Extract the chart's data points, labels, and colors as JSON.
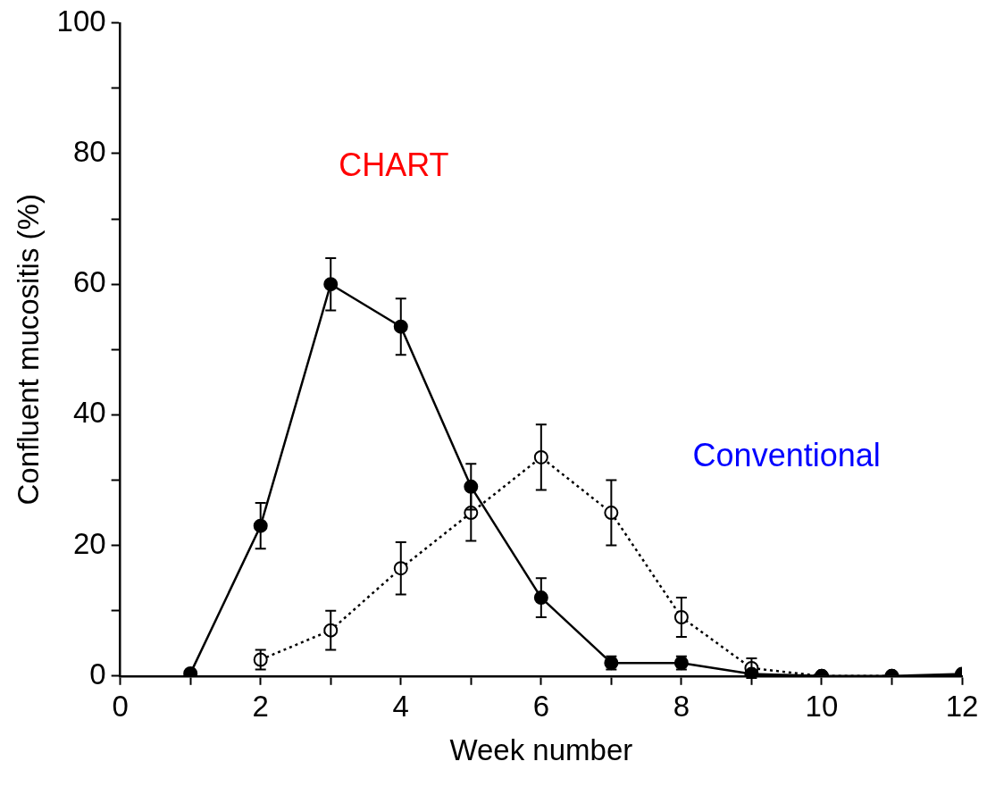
{
  "chart_data": {
    "type": "line",
    "xlabel": "Week number",
    "ylabel": "Confluent mucositis (%)",
    "xlim": [
      0,
      12
    ],
    "xticks": [
      0,
      {
        "value": 1,
        "label": null
      },
      2,
      {
        "value": 3,
        "label": null
      },
      4,
      {
        "value": 5,
        "label": null
      },
      6,
      {
        "value": 7,
        "label": null
      },
      8,
      {
        "value": 9,
        "label": null
      },
      10,
      {
        "value": 11,
        "label": null
      },
      12
    ],
    "ylim": [
      0,
      100
    ],
    "yticks": [
      0,
      {
        "value": 10,
        "label": null
      },
      20,
      {
        "value": 30,
        "label": null
      },
      40,
      {
        "value": 50,
        "label": null
      },
      60,
      {
        "value": 70,
        "label": null
      },
      80,
      {
        "value": 90,
        "label": null
      },
      100
    ],
    "grid": false,
    "legend": false,
    "marker": "circle",
    "x": [
      1,
      2,
      3,
      4,
      5,
      6,
      7,
      8,
      9,
      10,
      11,
      12
    ],
    "series": [
      {
        "name": "CHART",
        "color": "#000000",
        "line_style": "solid",
        "values": [
          0.4,
          23,
          60,
          53.5,
          29,
          12,
          2,
          2,
          0.3,
          0,
          0,
          0.3
        ],
        "errors": [
          null,
          3.5,
          4,
          4.3,
          3.5,
          3,
          1,
          1,
          null,
          null,
          null,
          null
        ]
      },
      {
        "name": "Conventional",
        "color": "#000000",
        "line_style": "dotted",
        "values": [
          null,
          2.5,
          7,
          16.5,
          25,
          33.5,
          25,
          9,
          1.2,
          0,
          0,
          null
        ],
        "errors": [
          null,
          1.5,
          3,
          4,
          4.3,
          5,
          5,
          3,
          1.5,
          null,
          null,
          null
        ]
      }
    ]
  }
}
